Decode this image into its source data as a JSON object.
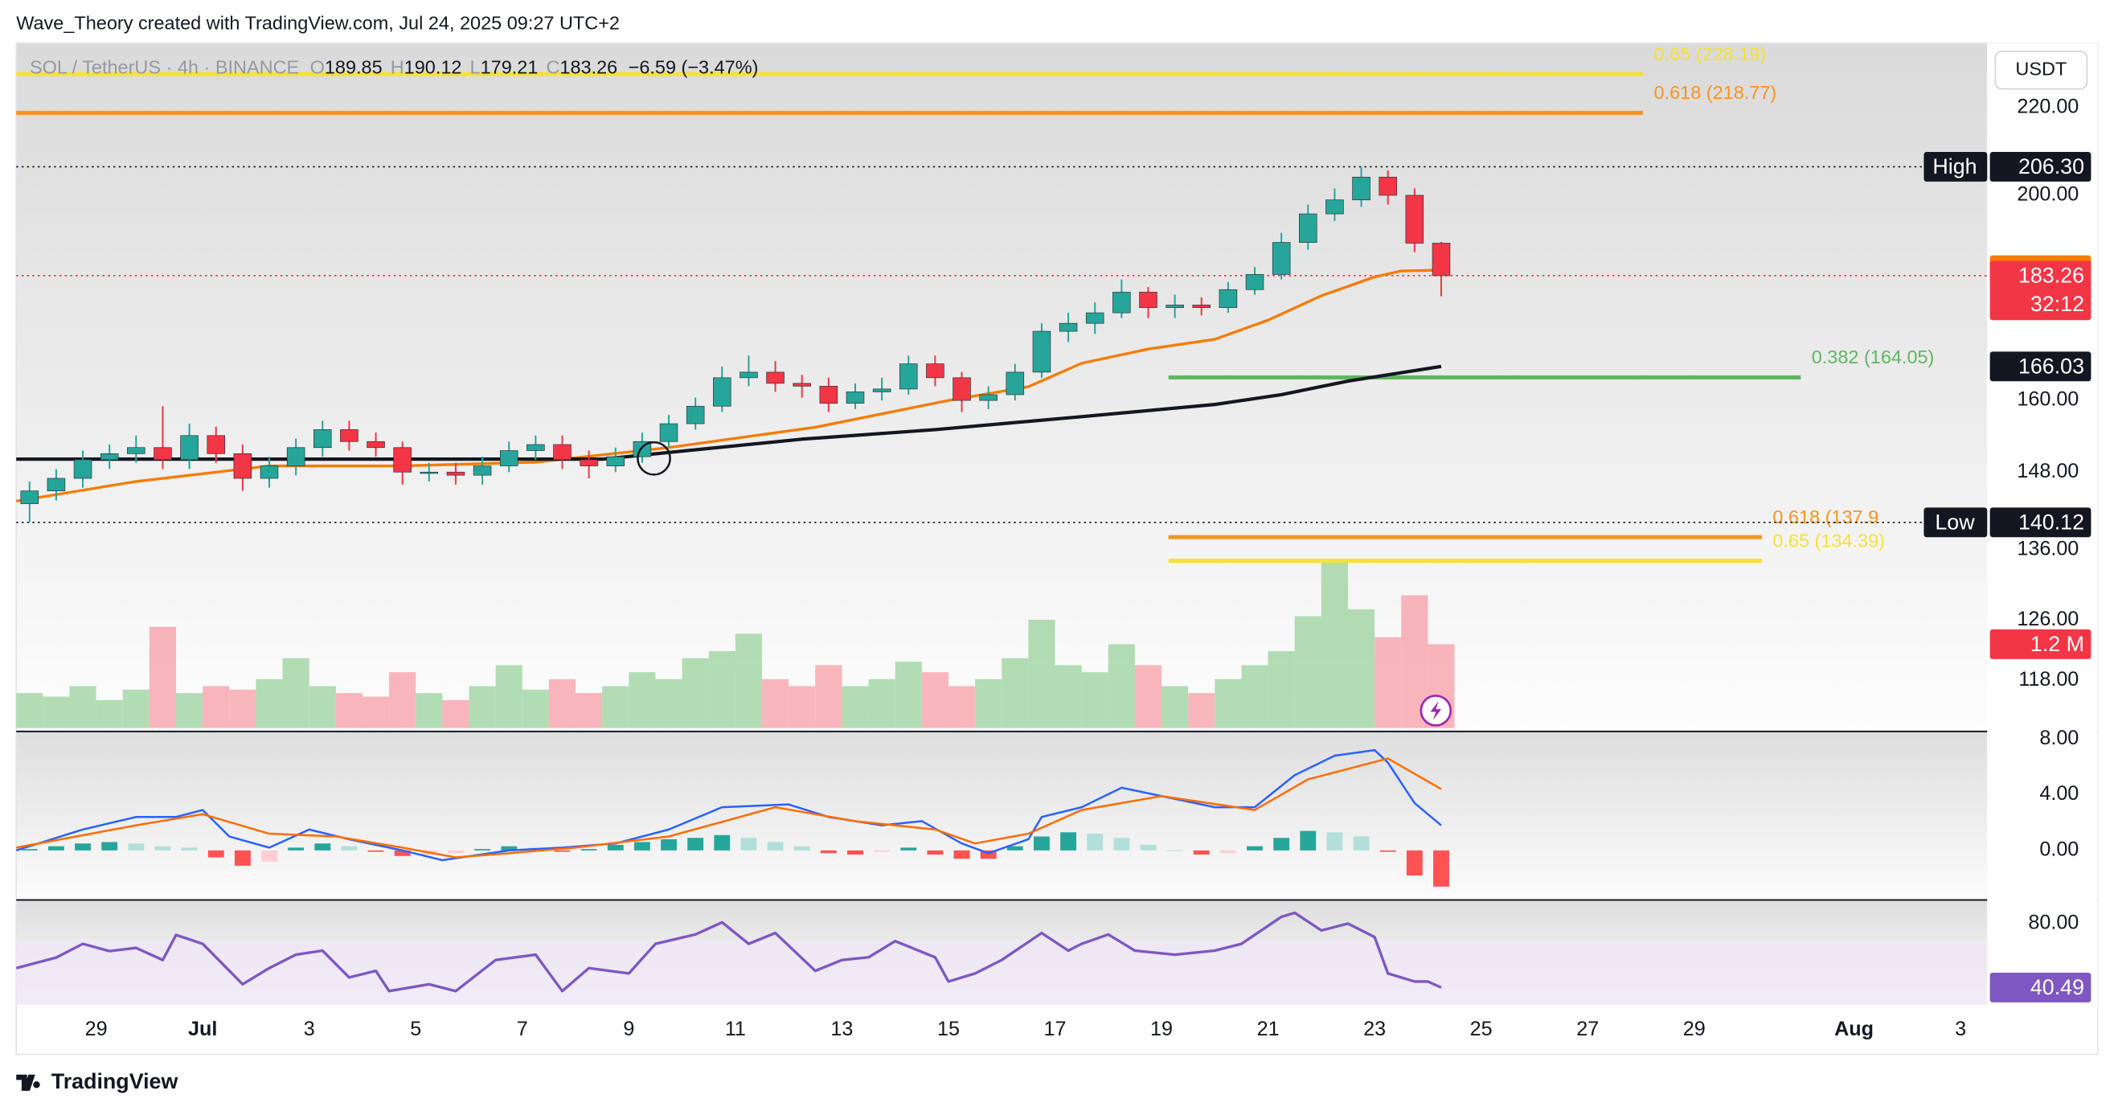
{
  "header": {
    "author_line": "Wave_Theory created with TradingView.com, Jul 24, 2025 09:27 UTC+2",
    "brand": "TradingView"
  },
  "toolbar": {
    "currency_button": "USDT"
  },
  "chart_data": [
    {
      "type": "candlestick",
      "symbol": "SOL / TetherUS · 4h · BINANCE",
      "ohlc_labels": [
        "O",
        "H",
        "L",
        "C"
      ],
      "change": "−6.59 (−3.47%)",
      "log_scale": true,
      "ylim": [
        111.7,
        236.0
      ],
      "yticks": [
        {
          "value": 220,
          "label": "220.00"
        },
        {
          "value": 200,
          "label": "200.00"
        },
        {
          "value": 160,
          "label": "160.00"
        },
        {
          "value": 148,
          "label": "148.00"
        },
        {
          "value": 136,
          "label": "136.00"
        },
        {
          "value": 126,
          "label": "126.00"
        },
        {
          "value": 118,
          "label": "118.00"
        }
      ],
      "xlim": [
        0.5,
        37.5
      ],
      "xticks": [
        {
          "value": 2,
          "label": "29"
        },
        {
          "value": 4,
          "label": "Jul"
        },
        {
          "value": 6,
          "label": "3"
        },
        {
          "value": 8,
          "label": "5"
        },
        {
          "value": 10,
          "label": "7"
        },
        {
          "value": 12,
          "label": "9"
        },
        {
          "value": 14,
          "label": "11"
        },
        {
          "value": 16,
          "label": "13"
        },
        {
          "value": 18,
          "label": "15"
        },
        {
          "value": 20,
          "label": "17"
        },
        {
          "value": 22,
          "label": "19"
        },
        {
          "value": 24,
          "label": "21"
        },
        {
          "value": 26,
          "label": "23"
        },
        {
          "value": 28,
          "label": "25"
        },
        {
          "value": 30,
          "label": "27"
        },
        {
          "value": 32,
          "label": "29"
        },
        {
          "value": 35,
          "label": "Aug"
        },
        {
          "value": 37,
          "label": "3"
        }
      ],
      "up_color": "#26a69a",
      "down_color": "#f23645",
      "candles": {
        "x": [
          0.75,
          1.25,
          1.75,
          2.25,
          2.75,
          3.25,
          3.75,
          4.25,
          4.75,
          5.25,
          5.75,
          6.25,
          6.75,
          7.25,
          7.75,
          8.25,
          8.75,
          9.25,
          9.75,
          10.25,
          10.75,
          11.25,
          11.75,
          12.25,
          12.75,
          13.25,
          13.75,
          14.25,
          14.75,
          15.25,
          15.75,
          16.25,
          16.75,
          17.25,
          17.75,
          18.25,
          18.75,
          19.25,
          19.75,
          20.25,
          20.75,
          21.25,
          21.75,
          22.25,
          22.75,
          23.25,
          23.75,
          24.25,
          24.75,
          25.25,
          25.75,
          26.25,
          26.75,
          27.25
        ],
        "open": [
          143,
          145,
          147,
          150,
          151,
          152,
          150,
          154,
          151,
          147,
          149,
          152,
          155,
          153,
          152,
          148,
          148,
          147.5,
          149,
          151.5,
          152.5,
          150,
          149,
          150.5,
          153,
          156,
          159,
          164,
          165,
          163,
          162.5,
          159.5,
          161.5,
          162,
          166.5,
          164,
          160,
          161,
          165,
          172.5,
          174,
          176,
          180,
          177,
          177.5,
          177,
          180.5,
          183.5,
          190,
          196,
          199,
          204,
          200,
          189.85
        ],
        "high": [
          146.5,
          148.5,
          151.5,
          152.5,
          154,
          159,
          156,
          155.5,
          152.5,
          150.5,
          153.5,
          156.5,
          156.5,
          154.5,
          153,
          149.5,
          149.5,
          150.5,
          153,
          154,
          154,
          151.5,
          152,
          154.5,
          157.5,
          160.5,
          166,
          168,
          167,
          164.5,
          164,
          163,
          164,
          168,
          168,
          165,
          162.5,
          166.5,
          174,
          176,
          178,
          182.5,
          181,
          179.5,
          179,
          182,
          185,
          192,
          198,
          201.5,
          206.3,
          205.5,
          201.5,
          190.12
        ],
        "low": [
          140.12,
          143.5,
          145.5,
          148.5,
          149.5,
          148.5,
          148.5,
          149.5,
          145,
          145.5,
          147.5,
          150.5,
          151.5,
          150.5,
          146,
          146.5,
          146,
          146,
          148,
          150,
          148.5,
          147,
          148,
          149.5,
          152,
          155,
          158,
          162.5,
          161.5,
          160.5,
          158,
          158.5,
          160,
          161,
          162.5,
          158,
          158.5,
          160,
          164,
          170.5,
          172,
          175,
          175,
          175,
          175.5,
          176,
          179.5,
          182.5,
          188.5,
          194.5,
          197.5,
          198,
          188,
          179.21
        ],
        "close": [
          145,
          147,
          150,
          151,
          152,
          150,
          154,
          151,
          147,
          149,
          152,
          155,
          153,
          152,
          148,
          148,
          147.5,
          149,
          151.5,
          152.5,
          150,
          149,
          150.5,
          153,
          156,
          159,
          164,
          165,
          163,
          162.5,
          159.5,
          161.5,
          162,
          166.5,
          164,
          160,
          161,
          165,
          172.5,
          174,
          176,
          180,
          177,
          177.5,
          177,
          180.5,
          183.5,
          190,
          196,
          199,
          204,
          200,
          189.85,
          183.26
        ]
      },
      "countdown": "32:12",
      "series": [
        {
          "color": "#f57c00",
          "x": [
            0.5,
            2.75,
            5.25,
            7.75,
            10.25,
            12.75,
            15.5,
            18,
            19.5,
            20.5,
            21.75,
            23,
            24,
            25,
            26,
            26.5,
            27.25
          ],
          "values": [
            143.4,
            146.5,
            149,
            149,
            149.6,
            152,
            155.4,
            160,
            162.4,
            166.6,
            169.2,
            171,
            174.6,
            179.3,
            183,
            184.2,
            184.36
          ]
        },
        {
          "color": "#131722",
          "x": [
            0.5,
            11.5,
            12.75,
            15.25,
            17.75,
            20.5,
            23,
            24.25,
            25.5,
            27.25
          ],
          "values": [
            150.1,
            150.1,
            151.2,
            153.4,
            155,
            157.2,
            159.3,
            161,
            163.4,
            166.03
          ]
        }
      ],
      "price_tags": [
        {
          "text": "High",
          "value": 206.3,
          "label": "206.30"
        },
        {
          "text": "Low",
          "value": 140.12,
          "label": "140.12"
        }
      ],
      "fib_levels": [
        {
          "value": 228.19,
          "label": "0.65 (228.19)",
          "color": "#f5e13a",
          "x_from": 0.5,
          "x_to": 31.04
        },
        {
          "value": 218.77,
          "label": "0.618 (218.77)",
          "color": "#f7941d",
          "x_from": 0.5,
          "x_to": 31.04
        },
        {
          "value": 164.05,
          "label": "0.382 (164.05)",
          "color": "#5fb662",
          "x_from": 22.13,
          "x_to": 34.0
        },
        {
          "value": 137.9,
          "label": "0.618 (137.9",
          "color": "#f7941d",
          "x_from": 22.13,
          "x_to": 33.27
        },
        {
          "value": 134.39,
          "label": "0.65 (134.39)",
          "color": "#f5e13a",
          "x_from": 22.13,
          "x_to": 33.27
        }
      ],
      "volume": {
        "ylim": [
          0,
          9.8
        ],
        "up_color": "#a5d6a7",
        "down_color": "#f7a8b0",
        "label_color": "#f23645",
        "values": [
          0.5,
          0.45,
          0.6,
          0.4,
          0.55,
          1.45,
          0.5,
          0.6,
          0.55,
          0.7,
          1.0,
          0.6,
          0.5,
          0.45,
          0.8,
          0.5,
          0.4,
          0.6,
          0.9,
          0.55,
          0.7,
          0.5,
          0.6,
          0.8,
          0.7,
          1.0,
          1.1,
          1.35,
          0.7,
          0.6,
          0.9,
          0.6,
          0.7,
          0.95,
          0.8,
          0.6,
          0.7,
          1.0,
          1.55,
          0.9,
          0.8,
          1.2,
          0.9,
          0.6,
          0.5,
          0.7,
          0.9,
          1.1,
          1.6,
          2.4,
          1.7,
          1.3,
          1.9,
          1.2
        ],
        "label": "1.2 M"
      }
    },
    {
      "type": "macd",
      "ylim": [
        -3.51,
        8.49
      ],
      "yticks": [
        {
          "value": 8,
          "label": "8.00"
        },
        {
          "value": 4,
          "label": "4.00"
        },
        {
          "value": 0,
          "label": "0.00"
        }
      ],
      "series": [
        {
          "color": "#2962ff",
          "x": [
            0.5,
            1.75,
            2.75,
            3.5,
            4,
            4.5,
            5.25,
            6,
            6.75,
            7.75,
            8.5,
            9.75,
            10.75,
            11.75,
            12.75,
            13.75,
            15,
            15.75,
            16.75,
            17.5,
            18.25,
            18.75,
            19.5,
            19.75,
            20.5,
            21.25,
            22,
            23,
            23.75,
            24.5,
            25.25,
            26,
            26.25,
            26.75,
            27.25
          ],
          "values": [
            0,
            1.5,
            2.4,
            2.4,
            2.9,
            1,
            0.2,
            1.5,
            0.8,
            0,
            -0.7,
            0,
            0.2,
            0.5,
            1.5,
            3.1,
            3.3,
            2.4,
            1.8,
            2.1,
            0.5,
            -0.2,
            0.8,
            2.4,
            3.1,
            4.5,
            3.9,
            3.1,
            3.1,
            5.4,
            6.8,
            7.2,
            6.3,
            3.4,
            1.8
          ]
        },
        {
          "color": "#ff6d00",
          "x": [
            0.5,
            2.75,
            4,
            5.25,
            6.5,
            7.75,
            8.75,
            9.75,
            11,
            12.75,
            14.75,
            16.25,
            17.75,
            18.5,
            19.5,
            20.5,
            22,
            23.75,
            24.75,
            26.25,
            27.25
          ],
          "values": [
            0.2,
            1.8,
            2.6,
            1.2,
            1,
            0.2,
            -0.5,
            -0.2,
            0.2,
            1,
            3.1,
            2.1,
            1.5,
            0.5,
            1.2,
            2.9,
            3.9,
            2.9,
            5.1,
            6.6,
            4.4
          ]
        }
      ],
      "histogram": [
        0.1,
        0.3,
        0.5,
        0.6,
        0.5,
        0.3,
        0.2,
        -0.5,
        -1.1,
        -0.8,
        0.2,
        0.5,
        0.3,
        -0.1,
        -0.4,
        -0.3,
        -0.2,
        0.1,
        0.3,
        0.2,
        -0.1,
        0.1,
        0.4,
        0.6,
        0.8,
        0.9,
        1.1,
        0.9,
        0.6,
        0.3,
        -0.2,
        -0.3,
        -0.1,
        0.2,
        -0.3,
        -0.6,
        -0.6,
        0.3,
        1.0,
        1.3,
        1.2,
        0.9,
        0.4,
        0.0,
        -0.3,
        -0.2,
        0.3,
        0.9,
        1.4,
        1.3,
        1.0,
        -0.1,
        -1.8,
        -2.6
      ],
      "hist_colors": {
        "up_strong": "#26a69a",
        "up_light": "#b2dfdb",
        "down_strong": "#ff5252",
        "down_light": "#ffcdd2"
      }
    },
    {
      "type": "rsi",
      "ylim": [
        27.5,
        94.2
      ],
      "yticks": [
        {
          "value": 80,
          "label": "80.00"
        }
      ],
      "band": [
        30,
        70
      ],
      "band_color": "#ede7f6",
      "color": "#7e57c2",
      "x": [
        0.5,
        1.25,
        1.75,
        2.25,
        2.75,
        3.25,
        3.5,
        4,
        4.75,
        5.25,
        5.75,
        6.25,
        6.75,
        7.25,
        7.5,
        8.25,
        8.75,
        9.5,
        10.25,
        10.75,
        11.25,
        12,
        12.5,
        13.25,
        13.75,
        14.25,
        14.75,
        15.5,
        16,
        16.5,
        17,
        17.75,
        18,
        18.5,
        19,
        19.75,
        20.25,
        20.5,
        21,
        21.5,
        22.25,
        23,
        23.5,
        24.25,
        24.5,
        25,
        25.5,
        26,
        26.25,
        26.75,
        27,
        27.25
      ],
      "values": [
        52.5,
        59,
        67.5,
        63,
        65,
        57.5,
        73,
        67.5,
        42.5,
        52.5,
        60.8,
        63.3,
        46.7,
        50.8,
        38.3,
        42.5,
        38.3,
        57.5,
        60.8,
        38.3,
        52.5,
        49.2,
        67.5,
        73.3,
        80.8,
        67.5,
        74.2,
        50.8,
        57.5,
        59.2,
        69.2,
        59.2,
        44.2,
        49.2,
        57.5,
        74.2,
        63.3,
        67.5,
        73.3,
        63.3,
        60.8,
        63.3,
        67.5,
        84.2,
        86.7,
        75.8,
        80,
        71.7,
        49.2,
        44.2,
        44.2,
        40.49
      ]
    }
  ]
}
